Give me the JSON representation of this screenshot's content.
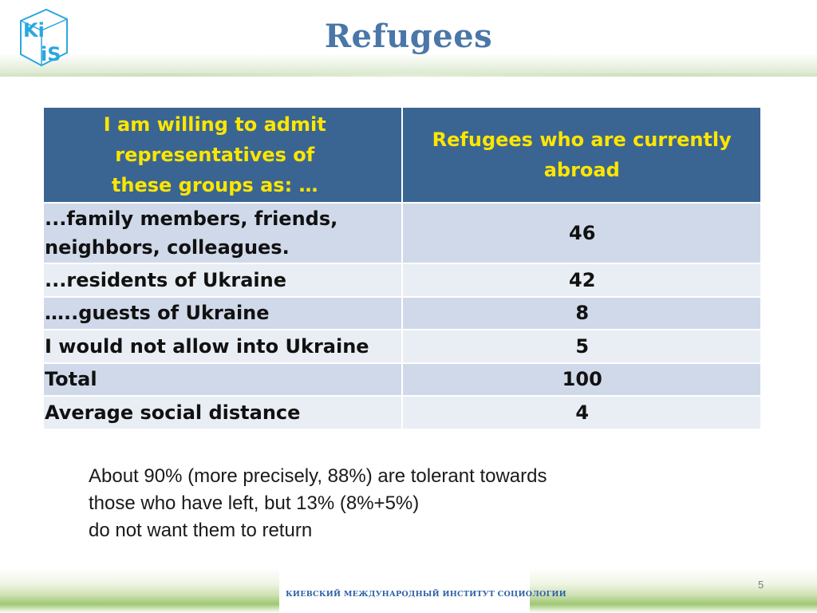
{
  "header": {
    "title": "Refugees",
    "logo": {
      "text_top": "Ki",
      "text_bottom": "iS",
      "color": "#2aa7de"
    }
  },
  "table": {
    "headers": [
      "I am willing to admit representatives of these groups as: …",
      "Refugees who are currently abroad"
    ],
    "rows": [
      {
        "label": "...family members, friends, neighbors, colleagues.",
        "value": "46"
      },
      {
        "label": "...residents of Ukraine",
        "value": "42"
      },
      {
        "label": "…..guests of Ukraine",
        "value": "8"
      },
      {
        "label": "I would not allow into Ukraine",
        "value": "5"
      },
      {
        "label": "Total",
        "value": "100"
      },
      {
        "label": "Average social distance",
        "value": "4"
      }
    ]
  },
  "note": {
    "lines": [
      "About 90% (more precisely, 88%) are tolerant towards",
      "those who have left, but 13% (8%+5%)",
      "do not want them to return"
    ]
  },
  "footer": {
    "institute": "КИЕВСКИЙ МЕЖДУНАРОДНЫЙ ИНСТИТУТ СОЦИОЛОГИИ",
    "slide_number": "5"
  },
  "colors": {
    "title": "#4a76a8",
    "header_bg": "#3a6593",
    "header_text": "#ffe600",
    "row_odd": "#d0d9e9",
    "row_even": "#e9edf4"
  }
}
